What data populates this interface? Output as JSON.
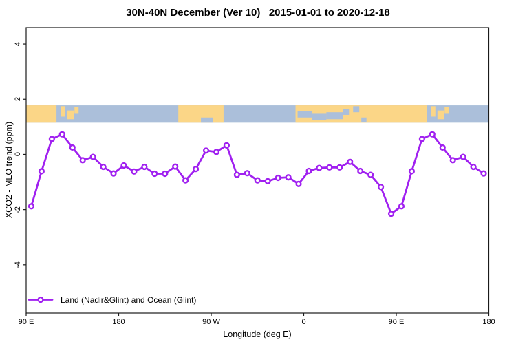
{
  "title": "30N-40N December (Ver 10)   2015-01-01 to 2020-12-18",
  "legend": {
    "label": "Land (Nadir&Glint) and Ocean (Glint)"
  },
  "colors": {
    "series": "#A020F0",
    "marker_fill": "#ffffff",
    "land": "#FBD687",
    "ocean": "#ABBFDA",
    "axis": "#1a1a1a",
    "text": "#000000"
  },
  "chart_data": {
    "type": "line",
    "title": "30N-40N December (Ver 10)   2015-01-01 to 2020-12-18",
    "xlabel": "Longitude (deg E)",
    "ylabel": "XCO2 - MLO trend (ppm)",
    "xlim": [
      90,
      540
    ],
    "ylim": [
      -5.75,
      4.6
    ],
    "grid": false,
    "legend_position": "bottom-left-inside",
    "x_ticks": [
      {
        "value": 90,
        "label": "90 E"
      },
      {
        "value": 180,
        "label": "180"
      },
      {
        "value": 270,
        "label": "90 W"
      },
      {
        "value": 360,
        "label": "0"
      },
      {
        "value": 450,
        "label": "90 E"
      },
      {
        "value": 540,
        "label": "180"
      }
    ],
    "y_ticks": [
      {
        "value": 4,
        "label": "4"
      },
      {
        "value": 2,
        "label": "2"
      },
      {
        "value": 0,
        "label": "0"
      },
      {
        "value": -2,
        "label": "-2"
      },
      {
        "value": -4,
        "label": "-4"
      }
    ],
    "series": [
      {
        "name": "Land (Nadir&Glint) and Ocean (Glint)",
        "color": "#A020F0",
        "marker": "open-circle",
        "x": [
          95,
          105,
          115,
          125,
          135,
          145,
          155,
          165,
          175,
          185,
          195,
          205,
          215,
          225,
          235,
          245,
          255,
          265,
          275,
          285,
          295,
          305,
          315,
          325,
          335,
          345,
          355,
          365,
          375,
          385,
          395,
          405,
          415,
          425,
          435,
          445,
          455,
          465,
          475,
          485,
          495,
          505,
          515,
          525,
          535
        ],
        "y": [
          -1.88,
          -0.61,
          0.56,
          0.73,
          0.25,
          -0.21,
          -0.09,
          -0.45,
          -0.69,
          -0.4,
          -0.62,
          -0.45,
          -0.7,
          -0.7,
          -0.44,
          -0.94,
          -0.53,
          0.14,
          0.09,
          0.33,
          -0.74,
          -0.68,
          -0.94,
          -0.97,
          -0.85,
          -0.83,
          -1.07,
          -0.6,
          -0.49,
          -0.47,
          -0.47,
          -0.27,
          -0.6,
          -0.74,
          -1.18,
          -2.15,
          -1.88,
          -0.61,
          0.56,
          0.73,
          0.25,
          -0.21,
          -0.09,
          -0.45,
          -0.69
        ]
      }
    ],
    "map_strip": {
      "description": "world land/ocean band 30N-40N drawn across plot",
      "y_top_value": 1.78,
      "y_bottom_value": 1.15,
      "ocean_color": "#ABBFDA",
      "land_color": "#FBD687",
      "land_segments": [
        {
          "from": 90,
          "to": 119.5,
          "top": 0,
          "bottom": 1
        },
        {
          "from": 124,
          "to": 128,
          "top": 0.05,
          "bottom": 0.65
        },
        {
          "from": 130,
          "to": 136.5,
          "top": 0.3,
          "bottom": 0.8
        },
        {
          "from": 137,
          "to": 141,
          "top": 0.1,
          "bottom": 0.45
        },
        {
          "from": 238,
          "to": 282,
          "top": 0,
          "bottom": 1
        },
        {
          "from": 352,
          "to": 479.5,
          "top": 0,
          "bottom": 1
        },
        {
          "from": 484,
          "to": 488,
          "top": 0.05,
          "bottom": 0.65
        },
        {
          "from": 490,
          "to": 496.5,
          "top": 0.3,
          "bottom": 0.8
        },
        {
          "from": 497,
          "to": 501,
          "top": 0.1,
          "bottom": 0.45
        }
      ],
      "ocean_patches": [
        {
          "from": 260,
          "to": 272,
          "top": 0.7,
          "bottom": 1
        },
        {
          "from": 354,
          "to": 368,
          "top": 0.35,
          "bottom": 0.7
        },
        {
          "from": 368,
          "to": 382,
          "top": 0.45,
          "bottom": 0.85
        },
        {
          "from": 382,
          "to": 398,
          "top": 0.4,
          "bottom": 0.8
        },
        {
          "from": 398,
          "to": 404,
          "top": 0.2,
          "bottom": 0.55
        },
        {
          "from": 408,
          "to": 414,
          "top": 0.05,
          "bottom": 0.4
        },
        {
          "from": 416,
          "to": 421,
          "top": 0.7,
          "bottom": 0.95
        }
      ]
    }
  }
}
